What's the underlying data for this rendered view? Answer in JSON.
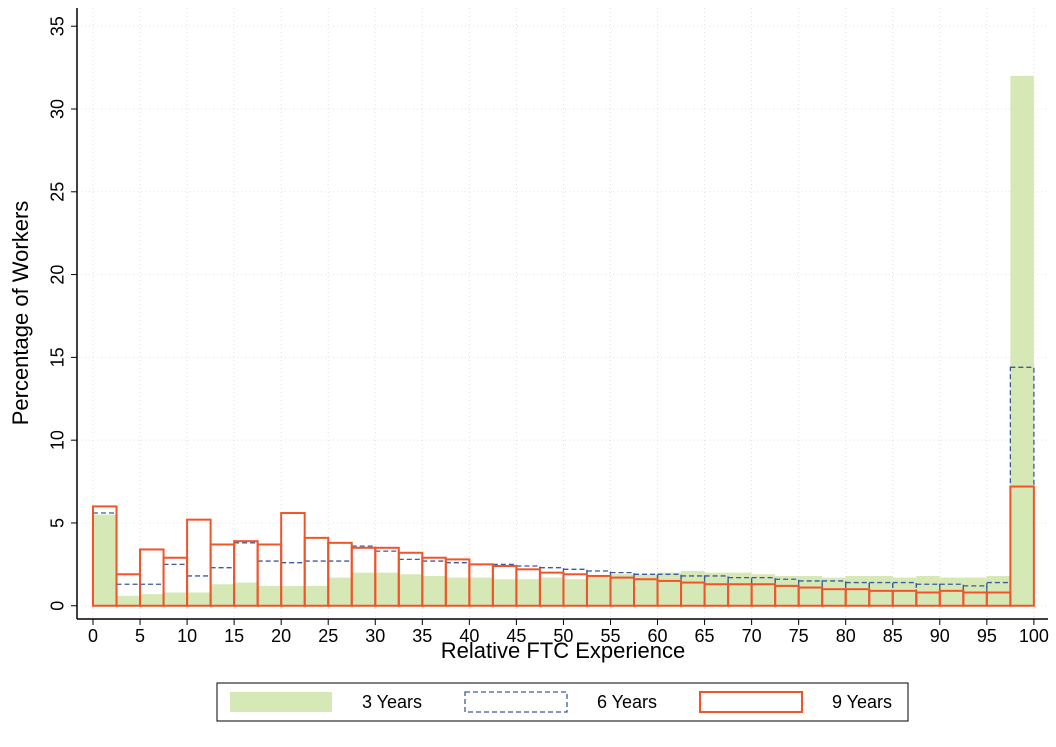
{
  "chart_data": {
    "type": "histogram",
    "x_label": "Relative FTC Experience",
    "y_label": "Percentage of Workers",
    "bins": [
      0,
      2.5,
      5,
      7.5,
      10,
      12.5,
      15,
      17.5,
      20,
      22.5,
      25,
      27.5,
      30,
      32.5,
      35,
      37.5,
      40,
      42.5,
      45,
      47.5,
      50,
      52.5,
      55,
      57.5,
      60,
      62.5,
      65,
      67.5,
      70,
      72.5,
      75,
      77.5,
      80,
      82.5,
      85,
      87.5,
      90,
      92.5,
      95,
      97.5,
      100
    ],
    "series": [
      {
        "name": "3 Years",
        "color": "#d5e8b5",
        "style": "filled",
        "values": [
          5.5,
          0.6,
          0.7,
          0.8,
          0.8,
          1.3,
          1.4,
          1.2,
          1.2,
          1.2,
          1.7,
          2.0,
          2.0,
          1.9,
          1.8,
          1.7,
          1.7,
          1.6,
          1.6,
          1.7,
          1.6,
          1.8,
          1.9,
          1.9,
          2.0,
          2.1,
          2.0,
          2.0,
          1.9,
          1.8,
          1.8,
          1.7,
          1.8,
          1.8,
          1.7,
          1.8,
          1.7,
          1.7,
          1.8,
          32.0
        ]
      },
      {
        "name": "6 Years",
        "color": "#3a5a9c",
        "style": "dashed",
        "values": [
          5.6,
          1.3,
          1.3,
          2.5,
          1.8,
          2.3,
          3.8,
          2.7,
          2.6,
          2.7,
          2.7,
          3.6,
          3.3,
          2.8,
          2.7,
          2.6,
          2.5,
          2.5,
          2.4,
          2.3,
          2.2,
          2.1,
          2.0,
          1.9,
          1.9,
          1.8,
          1.8,
          1.7,
          1.7,
          1.6,
          1.5,
          1.5,
          1.4,
          1.4,
          1.4,
          1.3,
          1.3,
          1.2,
          1.4,
          14.4
        ]
      },
      {
        "name": "9 Years",
        "color": "#f0552a",
        "style": "outline",
        "values": [
          6.0,
          1.9,
          3.4,
          2.9,
          5.2,
          3.7,
          3.9,
          3.7,
          5.6,
          4.1,
          3.8,
          3.5,
          3.5,
          3.2,
          2.9,
          2.8,
          2.5,
          2.4,
          2.2,
          2.0,
          1.9,
          1.8,
          1.7,
          1.6,
          1.5,
          1.4,
          1.3,
          1.3,
          1.3,
          1.2,
          1.1,
          1.0,
          1.0,
          0.9,
          0.9,
          0.8,
          0.9,
          0.8,
          0.8,
          7.2
        ]
      }
    ],
    "xlim": [
      -1.7,
      101.5
    ],
    "ylim": [
      -0.8,
      36.1
    ],
    "xticks": [
      0,
      5,
      10,
      15,
      20,
      25,
      30,
      35,
      40,
      45,
      50,
      55,
      60,
      65,
      70,
      75,
      80,
      85,
      90,
      95,
      100
    ],
    "yticks": [
      0,
      5,
      10,
      15,
      20,
      25,
      30,
      35
    ],
    "grid": true,
    "legend": "bottom"
  }
}
